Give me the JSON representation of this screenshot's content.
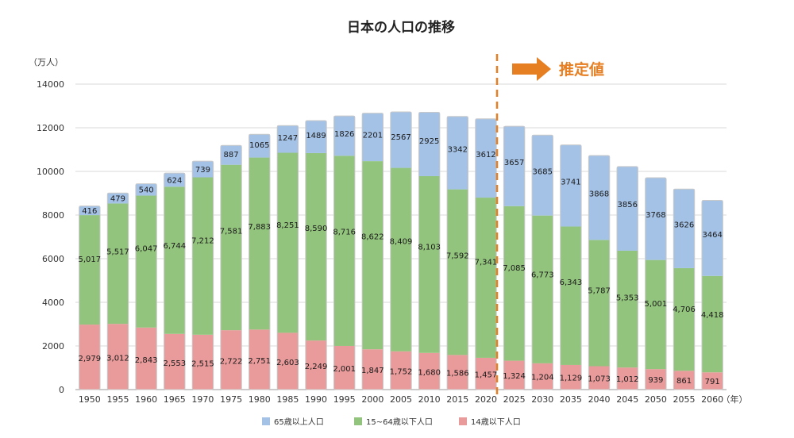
{
  "chart_data": {
    "type": "bar",
    "stacked": true,
    "title": "日本の人口の推移",
    "ylabel_unit": "（万人）",
    "xlabel_unit": "（年）",
    "ylim": [
      0,
      14000
    ],
    "yticks": [
      0,
      2000,
      4000,
      6000,
      8000,
      10000,
      12000,
      14000
    ],
    "grid": true,
    "legend_position": "bottom",
    "categories": [
      "1950",
      "1955",
      "1960",
      "1965",
      "1970",
      "1975",
      "1980",
      "1985",
      "1990",
      "1995",
      "2000",
      "2005",
      "2010",
      "2015",
      "2020",
      "2025",
      "2030",
      "2035",
      "2040",
      "2045",
      "2050",
      "2055",
      "2060"
    ],
    "series": [
      {
        "name": "14歳以下人口",
        "color": "#e99a9a",
        "values": [
          2979,
          3012,
          2843,
          2553,
          2515,
          2722,
          2751,
          2603,
          2249,
          2001,
          1847,
          1752,
          1680,
          1586,
          1457,
          1324,
          1204,
          1129,
          1073,
          1012,
          939,
          861,
          791
        ],
        "labels": [
          "2,979",
          "3,012",
          "2,843",
          "2,553",
          "2,515",
          "2,722",
          "2,751",
          "2,603",
          "2,249",
          "2,001",
          "1,847",
          "1,752",
          "1,680",
          "1,586",
          "1,457",
          "1,324",
          "1,204",
          "1,129",
          "1,073",
          "1,012",
          "939",
          "861",
          "791"
        ]
      },
      {
        "name": "15~64歳以下人口",
        "color": "#93c47d",
        "values": [
          5017,
          5517,
          6047,
          6744,
          7212,
          7581,
          7883,
          8251,
          8590,
          8716,
          8622,
          8409,
          8103,
          7592,
          7341,
          7085,
          6773,
          6343,
          5787,
          5353,
          5001,
          4706,
          4418
        ],
        "labels": [
          "5,017",
          "5,517",
          "6,047",
          "6,744",
          "7,212",
          "7,581",
          "7,883",
          "8,251",
          "8,590",
          "8,716",
          "8,622",
          "8,409",
          "8,103",
          "7,592",
          "7,341",
          "7,085",
          "6,773",
          "6,343",
          "5,787",
          "5,353",
          "5,001",
          "4,706",
          "4,418"
        ]
      },
      {
        "name": "65歳以上人口",
        "color": "#a4c2e6",
        "values": [
          416,
          479,
          540,
          624,
          739,
          887,
          1065,
          1247,
          1489,
          1826,
          2201,
          2567,
          2925,
          3342,
          3612,
          3657,
          3685,
          3741,
          3868,
          3856,
          3768,
          3626,
          3464
        ],
        "labels": [
          "416",
          "479",
          "540",
          "624",
          "739",
          "887",
          "1065",
          "1247",
          "1489",
          "1826",
          "2201",
          "2567",
          "2925",
          "3342",
          "3612",
          "3657",
          "3685",
          "3741",
          "3868",
          "3856",
          "3768",
          "3626",
          "3464"
        ]
      }
    ],
    "legend_order": [
      "65歳以上人口",
      "15~64歳以下人口",
      "14歳以下人口"
    ],
    "annotation": {
      "text": "推定値",
      "after_category": "2020",
      "color": "#e67e22"
    }
  }
}
